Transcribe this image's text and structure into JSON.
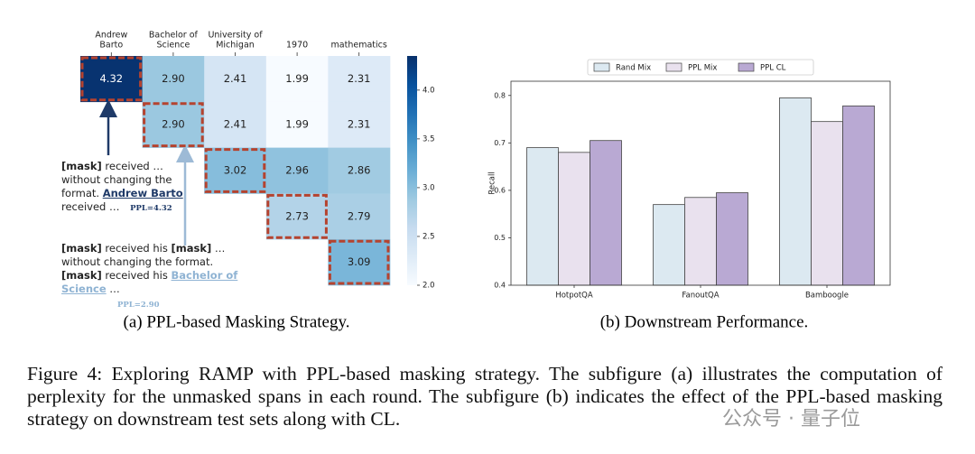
{
  "chart_data": [
    {
      "type": "heatmap",
      "columns": [
        [
          "Andrew",
          "Barto"
        ],
        [
          "Bachelor of",
          "Science"
        ],
        [
          "University of",
          "Michigan"
        ],
        [
          "1970"
        ],
        [
          "mathematics"
        ]
      ],
      "values": [
        [
          4.32,
          2.9,
          2.41,
          1.99,
          2.31
        ],
        [
          null,
          2.9,
          2.41,
          1.99,
          2.31
        ],
        [
          null,
          null,
          3.02,
          2.96,
          2.86
        ],
        [
          null,
          null,
          null,
          2.73,
          2.79
        ],
        [
          null,
          null,
          null,
          null,
          3.09
        ]
      ],
      "value_labels": [
        [
          "4.32",
          "2.90",
          "2.41",
          "1.99",
          "2.31"
        ],
        [
          null,
          "2.90",
          "2.41",
          "1.99",
          "2.31"
        ],
        [
          null,
          null,
          "3.02",
          "2.96",
          "2.86"
        ],
        [
          null,
          null,
          null,
          "2.73",
          "2.79"
        ],
        [
          null,
          null,
          null,
          null,
          "3.09"
        ]
      ],
      "clim": [
        2.0,
        4.35
      ],
      "colorbar_ticks": [
        {
          "value": 2.0,
          "label": "2.0"
        },
        2.5,
        {
          "value": 3.0,
          "label": "3.0"
        },
        3.5,
        {
          "value": 4.0,
          "label": "4.0"
        }
      ],
      "colormap": "Blues",
      "caption": "(a) PPL-based Masking Strategy."
    },
    {
      "type": "bar",
      "categories": [
        "HotpotQA",
        "FanoutQA",
        "Bamboogle"
      ],
      "series": [
        {
          "name": "Rand Mix",
          "color": "#dce9f1",
          "values": [
            0.69,
            0.57,
            0.795
          ]
        },
        {
          "name": "PPL Mix",
          "color": "#e9e1ee",
          "values": [
            0.68,
            0.585,
            0.745
          ]
        },
        {
          "name": "PPL CL",
          "color": "#b9a9d3",
          "values": [
            0.705,
            0.595,
            0.778
          ]
        }
      ],
      "ylim": [
        0.4,
        0.83
      ],
      "yticks": [
        0.4,
        0.5,
        0.6,
        0.7,
        0.8
      ],
      "ylabel": "Recall",
      "legend": "upper center",
      "caption": "(b) Downstream Performance."
    }
  ],
  "annotations": [
    {
      "parts": [
        "[mask]",
        " received … without changing the format. ",
        "Andrew Barto",
        " received … "
      ],
      "ppl": "PPL=4.32"
    },
    {
      "parts": [
        "[mask]",
        " received his ",
        "[mask]",
        " … without changing the format. ",
        "[mask]",
        " received his ",
        "Bachelor of Science",
        " …"
      ],
      "ppl": "PPL=2.90"
    }
  ],
  "figure_caption": "Figure 4: Exploring RAMP with PPL-based masking strategy. The subfigure (a) illustrates the computation of perplexity for the unmasked spans in each round. The subfigure (b) indicates the effect of the PPL-based masking strategy on downstream test sets along with CL.",
  "watermark": "公众号 · 量子位"
}
